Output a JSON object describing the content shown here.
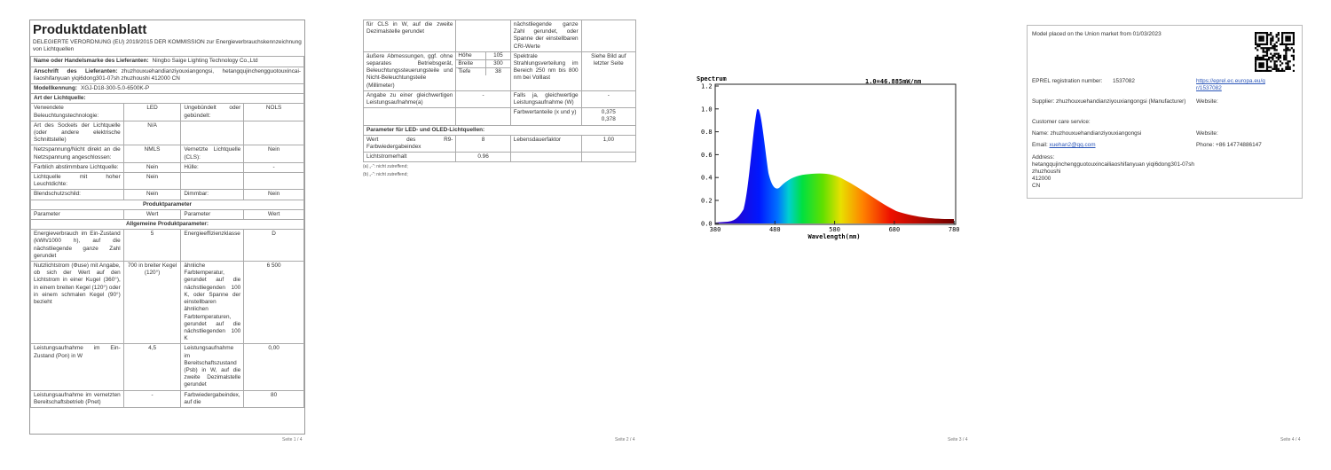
{
  "page1": {
    "title": "Produktdatenblatt",
    "intro": "DELEGIERTE VERORDNUNG (EU) 2019/2015 DER KOMMISSION zur Energieverbrauchskennzeichnung von Lichtquellen",
    "rows": [
      [
        "Name oder Handelsmarke des Lieferanten:",
        "Ningbo Saige Lighting Technology Co.,Ltd"
      ],
      [
        "Anschrift des Lieferanten:",
        "zhuzhouxuehandianziyouxiangongsi, hetangqujinchengguotouxincai-liaoshifanyuan yiqi6dong301-07sh zhuzhoushi 412000 CN"
      ],
      [
        "Modellkennung:",
        "XGJ-D18-300-5.0-6500K-P"
      ],
      [
        "Art der Lichtquelle:"
      ],
      [
        "Verwendete Beleuchtungstechnologie:",
        "LED",
        "Ungebündelt oder gebündelt:",
        "NOLS"
      ],
      [
        "Art des Sockels der Lichtquelle (oder andere elektrische Schnittstelle)",
        "N/A",
        null,
        null
      ],
      [
        "Netzspannung/Nicht direkt an die Netzspannung angeschlossen:",
        "NMLS",
        "Vernetzte Lichtquelle (CLS):",
        "Nein"
      ],
      [
        "Farblich abstimmbare Lichtquelle:",
        "Nein",
        "Hülle:",
        "-"
      ],
      [
        "Lichtquelle mit hoher Leuchtdichte:",
        "Nein",
        null,
        null
      ],
      [
        "Blendschutzschild:",
        "Nein",
        "Dimmbar:",
        "Nein"
      ],
      [
        "Produktparameter"
      ],
      [
        "Parameter",
        "Wert",
        "Parameter",
        "Wert"
      ],
      [
        "Allgemeine Produktparameter:"
      ],
      [
        "Energieverbrauch im Ein-Zustand (kWh/1000 h), auf die nächstliegende ganze Zahl gerundet",
        "5",
        "Energieeffizienzklasse",
        "D"
      ],
      [
        "Nutzlichtstrom (Φuse) mit Angabe, ob sich der Wert auf den Lichtstrom in einer Kugel (360°), in einem breiten Kegel (120°) oder in einem schmalen Kegel (90°) bezieht",
        "700 in breiter Kegel (120°)",
        "ähnliche Farbtemperatur, gerundet auf die nächstliegenden 100 K, oder Spanne der einstellbaren ähnlichen Farbtemperaturen, gerundet auf die nächstliegenden 100 K",
        "6 500"
      ],
      [
        "Leistungsaufnahme im Ein-Zustand (Pon) in W",
        "4,5",
        "Leistungsaufnahme im Bereitschaftszustand (Psb) in W, auf die zweite Dezimalstelle gerundet",
        "0,00"
      ],
      [
        "Leistungsaufnahme im vernetzten Bereitschaftsbetrieb (Pnet)",
        "-",
        "Farbwiedergabeindex, auf die",
        "80"
      ]
    ],
    "footer": "Seite 1 / 4"
  },
  "page2": {
    "rows": [
      [
        "für CLS in W, auf die zweite Dezimalstelle gerundet",
        null,
        "nächstliegende ganze Zahl gerundet, oder Spanne der einstellbaren CRI-Werte",
        null
      ],
      [
        "äußere Abmessungen, ggf. ohne separates Betriebsgerät, Beleuchtungssteuerungsteile und Nicht-Beleuchtungsteile (Millimeter)",
        [
          [
            "Höhe",
            "105"
          ],
          [
            "Breite",
            "300"
          ],
          [
            "Tiefe",
            "38"
          ]
        ],
        "Spektrale Strahlungsverteilung im Bereich 250 nm bis 800 nm bei Volllast",
        "Siehe Bild auf letzter Seite"
      ],
      [
        "Angabe zu einer gleichwertigen Leistungsaufnahme(a)",
        "-",
        "Falls ja, gleichwertige Leistungsaufnahme (W)",
        "-"
      ],
      [
        null,
        null,
        "Farbwertanteile (x und y)",
        [
          "0,375",
          "0,378"
        ]
      ],
      [
        "Parameter für LED- und OLED-Lichtquellen:"
      ],
      [
        "Wert des R9-Farbwiedergabeindex",
        "8",
        "Lebensdauerfaktor",
        "1,00"
      ],
      [
        "Lichtstromerhalt",
        "0.96",
        null,
        null
      ]
    ],
    "notes": [
      "(a) „-“: nicht zutreffend;",
      "(b) „-“: nicht zutreffend;"
    ],
    "footer": "Seite 2 / 4"
  },
  "page3": {
    "spectrum": {
      "title": "Spectrum",
      "scale": "1.0=46.885mW/nm",
      "yticks": [
        "1.2",
        "1.0",
        "0.8",
        "0.6",
        "0.4",
        "0.2",
        "0.0"
      ],
      "xticks": [
        "380",
        "480",
        "580",
        "680",
        "780"
      ],
      "xlabel": "Wavelength(nm)"
    },
    "footer": "Seite 3 / 4"
  },
  "page4": {
    "market": "Model placed on the Union market from 01/03/2023",
    "eprel_label": "EPREL registration number:",
    "eprel_number": "1537082",
    "eprel_link": "https://eprel.ec.europa.eu/qr/1537082",
    "supplier_label": "Supplier:",
    "supplier": "zhuzhouxuehandianziyouxiangongsi (Manufacturer)",
    "website_label": "Website:",
    "care_label": "Customer care service:",
    "name_label": "Name:",
    "name": "zhuzhouxuehandianziyouxiangongsi",
    "website_label2": "Website:",
    "email_label": "Email:",
    "email": "xuehan2@qq.com",
    "phone_label": "Phone:",
    "phone": "+86 14774886147",
    "address_label": "Address:",
    "address": [
      "hetangqujinchengguotouxincailiaoshifanyuan yiqi6dong301-07sh",
      "zhuzhoushi",
      "412000",
      "CN"
    ],
    "footer": "Seite 4 / 4"
  }
}
